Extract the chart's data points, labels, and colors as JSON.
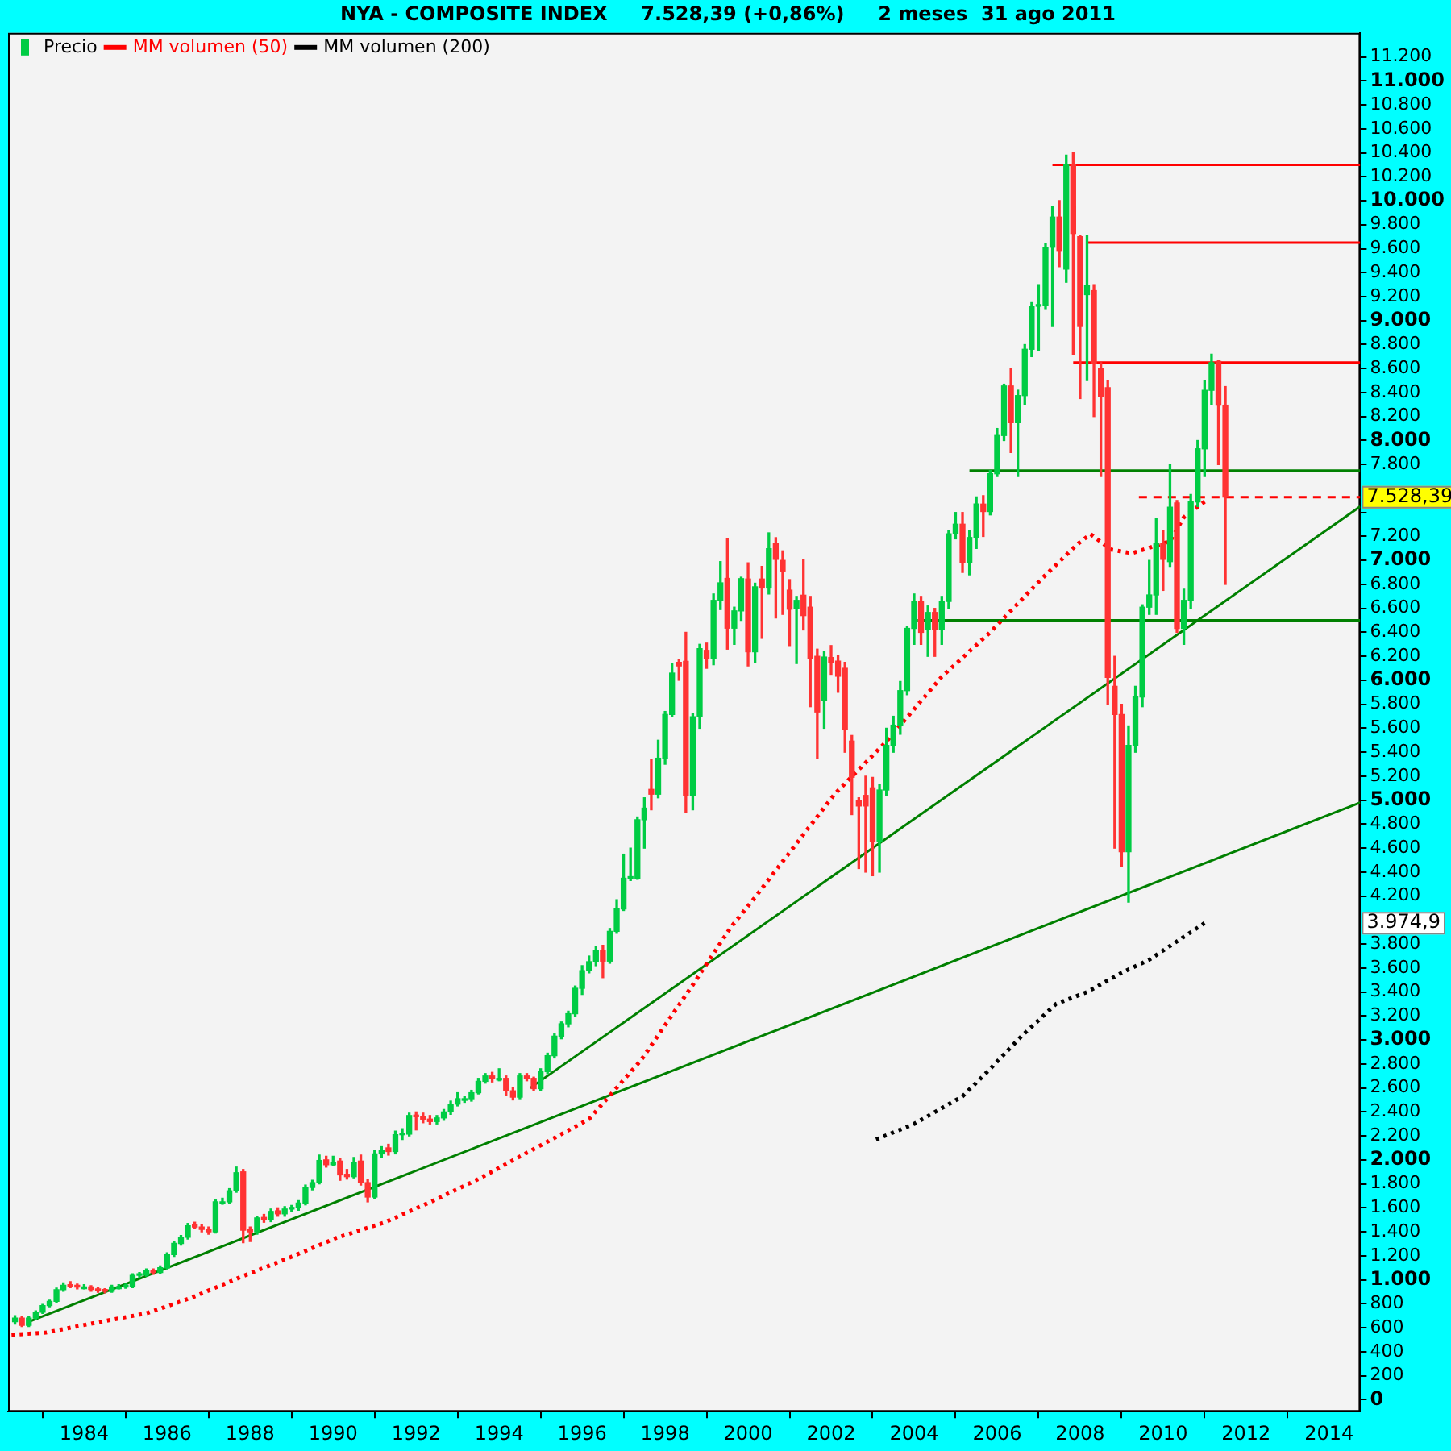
{
  "chart_data": {
    "type": "candlestick",
    "title": "NYA - COMPOSITE INDEX     7.528,39 (+0,86%)     2 meses  31 ago 2011",
    "legend": "top left",
    "xlim": [
      "1982-03",
      "2014-10"
    ],
    "xticks": [
      "1984",
      "1986",
      "1988",
      "1990",
      "1992",
      "1994",
      "1996",
      "1998",
      "2000",
      "2002",
      "2004",
      "2006",
      "2008",
      "2010",
      "2012",
      "2014"
    ],
    "ylim": [
      -100,
      11400
    ],
    "yticks": [
      0,
      200,
      400,
      600,
      800,
      {
        "value": 1000,
        "label": "1.000"
      },
      {
        "value": 1200,
        "label": "1.200"
      },
      {
        "value": 1400,
        "label": "1.400"
      },
      {
        "value": 1600,
        "label": "1.600"
      },
      {
        "value": 1800,
        "label": "1.800"
      },
      {
        "value": 2000,
        "label": "2.000"
      },
      {
        "value": 2200,
        "label": "2.200"
      },
      {
        "value": 2400,
        "label": "2.400"
      },
      {
        "value": 2600,
        "label": "2.600"
      },
      {
        "value": 2800,
        "label": "2.800"
      },
      {
        "value": 3000,
        "label": "3.000"
      },
      {
        "value": 3200,
        "label": "3.200"
      },
      {
        "value": 3400,
        "label": "3.400"
      },
      {
        "value": 3600,
        "label": "3.600"
      },
      {
        "value": 3800,
        "label": "3.800"
      },
      {
        "value": 4200,
        "label": "4.200"
      },
      {
        "value": 4400,
        "label": "4.400"
      },
      {
        "value": 4600,
        "label": "4.600"
      },
      {
        "value": 4800,
        "label": "4.800"
      },
      {
        "value": 5000,
        "label": "5.000"
      },
      {
        "value": 5200,
        "label": "5.200"
      },
      {
        "value": 5400,
        "label": "5.400"
      },
      {
        "value": 5600,
        "label": "5.600"
      },
      {
        "value": 5800,
        "label": "5.800"
      },
      {
        "value": 6000,
        "label": "6.000"
      },
      {
        "value": 6200,
        "label": "6.200"
      },
      {
        "value": 6400,
        "label": "6.400"
      },
      {
        "value": 6600,
        "label": "6.600"
      },
      {
        "value": 6800,
        "label": "6.800"
      },
      {
        "value": 7000,
        "label": "7.000"
      },
      {
        "value": 7200,
        "label": "7.200"
      },
      {
        "value": 7400,
        "label": null
      },
      {
        "value": 7800,
        "label": "7.800"
      },
      {
        "value": 8000,
        "label": "8.000"
      },
      {
        "value": 8200,
        "label": "8.200"
      },
      {
        "value": 8400,
        "label": "8.400"
      },
      {
        "value": 8600,
        "label": "8.600"
      },
      {
        "value": 8800,
        "label": "8.800"
      },
      {
        "value": 9000,
        "label": "9.000"
      },
      {
        "value": 9200,
        "label": "9.200"
      },
      {
        "value": 9400,
        "label": "9.400"
      },
      {
        "value": 9600,
        "label": "9.600"
      },
      {
        "value": 9800,
        "label": "9.800"
      },
      {
        "value": 10000,
        "label": "10.000"
      },
      {
        "value": 10200,
        "label": "10.200"
      },
      {
        "value": 10400,
        "label": "10.400"
      },
      {
        "value": 10600,
        "label": "10.600"
      },
      {
        "value": 10800,
        "label": "10.800"
      },
      {
        "value": 11000,
        "label": "11.000"
      },
      {
        "value": 11200,
        "label": "11.200"
      }
    ],
    "annotations": [
      {
        "text": "7.528,39",
        "x": "2014-10",
        "y": 7528.39
      },
      "3.974,9"
    ],
    "series": [
      {
        "name": "Precio",
        "color": "#000000",
        "x": [
          "1982-05",
          "1982-07",
          "1982-09",
          "1982-11",
          "1983-01",
          "1983-03",
          "1983-05",
          "1983-07",
          "1983-09",
          "1983-11",
          "1984-01",
          "1984-03",
          "1984-05",
          "1984-07",
          "1984-09",
          "1984-11",
          "1985-01",
          "1985-03",
          "1985-05",
          "1985-07",
          "1985-09",
          "1985-11",
          "1986-01",
          "1986-03",
          "1986-05",
          "1986-07",
          "1986-09",
          "1986-11",
          "1987-01",
          "1987-03",
          "1987-05",
          "1987-07",
          "1987-09",
          "1987-11",
          "1988-01",
          "1988-03",
          "1988-05",
          "1988-07",
          "1988-09",
          "1988-11",
          "1989-01",
          "1989-03",
          "1989-05",
          "1989-07",
          "1989-09",
          "1989-11",
          "1990-01",
          "1990-03",
          "1990-05",
          "1990-07",
          "1990-09",
          "1990-11",
          "1991-01",
          "1991-03",
          "1991-05",
          "1991-07",
          "1991-09",
          "1991-11",
          "1992-01",
          "1992-03",
          "1992-05",
          "1992-07",
          "1992-09",
          "1992-11",
          "1993-01",
          "1993-03",
          "1993-05",
          "1993-07",
          "1993-09",
          "1993-11",
          "1994-01",
          "1994-03",
          "1994-05",
          "1994-07",
          "1994-09",
          "1994-11",
          "1995-01",
          "1995-03",
          "1995-05",
          "1995-07",
          "1995-09",
          "1995-11",
          "1996-01",
          "1996-03",
          "1996-05",
          "1996-07",
          "1996-09",
          "1996-11",
          "1997-01",
          "1997-03",
          "1997-05",
          "1997-07",
          "1997-09",
          "1997-11",
          "1998-01",
          "1998-03",
          "1998-05",
          "1998-07",
          "1998-09",
          "1998-11",
          "1999-01",
          "1999-03",
          "1999-05",
          "1999-07",
          "1999-09",
          "1999-11",
          "2000-01",
          "2000-03",
          "2000-05",
          "2000-07",
          "2000-09",
          "2000-11",
          "2001-01",
          "2001-03",
          "2001-05",
          "2001-07",
          "2001-09",
          "2001-11",
          "2002-01",
          "2002-03",
          "2002-05",
          "2002-07",
          "2002-09",
          "2002-11",
          "2003-01",
          "2003-03",
          "2003-05",
          "2003-07",
          "2003-09",
          "2003-11",
          "2004-01",
          "2004-03",
          "2004-05",
          "2004-07",
          "2004-09",
          "2004-11",
          "2005-01",
          "2005-03",
          "2005-05",
          "2005-07",
          "2005-09",
          "2005-11",
          "2006-01",
          "2006-03",
          "2006-05",
          "2006-07",
          "2006-09",
          "2006-11",
          "2007-01",
          "2007-03",
          "2007-05",
          "2007-07",
          "2007-09",
          "2007-11",
          "2008-01",
          "2008-03",
          "2008-05",
          "2008-07",
          "2008-09",
          "2008-11",
          "2009-01",
          "2009-03",
          "2009-05",
          "2009-07",
          "2009-09",
          "2009-11",
          "2010-01",
          "2010-03",
          "2010-05",
          "2010-07",
          "2010-09",
          "2010-11",
          "2011-01",
          "2011-03",
          "2011-05",
          "2011-07"
        ],
        "ohlc": [
          [
            650,
            700,
            630,
            680
          ],
          [
            680,
            690,
            610,
            620
          ],
          [
            620,
            690,
            610,
            680
          ],
          [
            680,
            740,
            670,
            730
          ],
          [
            730,
            795,
            720,
            785
          ],
          [
            785,
            830,
            775,
            820
          ],
          [
            820,
            930,
            810,
            918
          ],
          [
            918,
            975,
            905,
            955
          ],
          [
            960,
            985,
            935,
            945
          ],
          [
            945,
            965,
            925,
            940
          ],
          [
            940,
            960,
            925,
            940
          ],
          [
            940,
            950,
            905,
            920
          ],
          [
            920,
            935,
            895,
            910
          ],
          [
            910,
            925,
            890,
            905
          ],
          [
            905,
            955,
            895,
            940
          ],
          [
            940,
            960,
            925,
            940
          ],
          [
            940,
            965,
            930,
            945
          ],
          [
            945,
            1050,
            935,
            1037
          ],
          [
            1037,
            1060,
            1020,
            1040
          ],
          [
            1040,
            1090,
            1030,
            1075
          ],
          [
            1075,
            1090,
            1045,
            1060
          ],
          [
            1060,
            1115,
            1050,
            1100
          ],
          [
            1100,
            1225,
            1090,
            1210
          ],
          [
            1210,
            1320,
            1195,
            1303
          ],
          [
            1303,
            1370,
            1290,
            1355
          ],
          [
            1355,
            1470,
            1340,
            1450
          ],
          [
            1460,
            1480,
            1425,
            1440
          ],
          [
            1440,
            1460,
            1400,
            1420
          ],
          [
            1420,
            1440,
            1380,
            1400
          ],
          [
            1400,
            1665,
            1390,
            1650
          ],
          [
            1650,
            1680,
            1630,
            1650
          ],
          [
            1650,
            1760,
            1640,
            1742
          ],
          [
            1742,
            1940,
            1730,
            1893
          ],
          [
            1900,
            1920,
            1310,
            1414
          ],
          [
            1420,
            1440,
            1320,
            1400
          ],
          [
            1400,
            1530,
            1380,
            1516
          ],
          [
            1520,
            1545,
            1480,
            1500
          ],
          [
            1500,
            1590,
            1485,
            1570
          ],
          [
            1575,
            1600,
            1530,
            1550
          ],
          [
            1550,
            1610,
            1530,
            1590
          ],
          [
            1590,
            1620,
            1570,
            1600
          ],
          [
            1600,
            1660,
            1580,
            1640
          ],
          [
            1640,
            1790,
            1625,
            1770
          ],
          [
            1770,
            1830,
            1750,
            1810
          ],
          [
            1810,
            2040,
            1800,
            1995
          ],
          [
            2000,
            2030,
            1940,
            1960
          ],
          [
            1960,
            2030,
            1950,
            1980
          ],
          [
            1990,
            2010,
            1830,
            1875
          ],
          [
            1880,
            1920,
            1840,
            1860
          ],
          [
            1860,
            2020,
            1850,
            1980
          ],
          [
            1990,
            2040,
            1790,
            1810
          ],
          [
            1810,
            1840,
            1650,
            1690
          ],
          [
            1690,
            2080,
            1680,
            2050
          ],
          [
            2050,
            2110,
            2020,
            2080
          ],
          [
            2100,
            2130,
            2040,
            2070
          ],
          [
            2070,
            2240,
            2050,
            2210
          ],
          [
            2210,
            2260,
            2170,
            2215
          ],
          [
            2215,
            2390,
            2200,
            2370
          ],
          [
            2370,
            2400,
            2250,
            2360
          ],
          [
            2360,
            2390,
            2310,
            2340
          ],
          [
            2340,
            2370,
            2300,
            2320
          ],
          [
            2320,
            2370,
            2300,
            2350
          ],
          [
            2350,
            2420,
            2330,
            2400
          ],
          [
            2400,
            2490,
            2380,
            2465
          ],
          [
            2465,
            2560,
            2450,
            2510
          ],
          [
            2510,
            2530,
            2480,
            2510
          ],
          [
            2510,
            2580,
            2490,
            2560
          ],
          [
            2560,
            2680,
            2550,
            2655
          ],
          [
            2655,
            2720,
            2640,
            2700
          ],
          [
            2700,
            2730,
            2650,
            2680
          ],
          [
            2680,
            2760,
            2660,
            2680
          ],
          [
            2680,
            2700,
            2540,
            2576
          ],
          [
            2576,
            2600,
            2500,
            2523
          ],
          [
            2523,
            2720,
            2510,
            2700
          ],
          [
            2700,
            2720,
            2660,
            2680
          ],
          [
            2680,
            2690,
            2580,
            2594
          ],
          [
            2594,
            2760,
            2580,
            2736
          ],
          [
            2736,
            2890,
            2720,
            2869
          ],
          [
            2869,
            3050,
            2850,
            3032
          ],
          [
            3032,
            3150,
            3010,
            3135
          ],
          [
            3135,
            3240,
            3110,
            3219
          ],
          [
            3219,
            3450,
            3200,
            3431
          ],
          [
            3431,
            3620,
            3380,
            3578
          ],
          [
            3578,
            3700,
            3560,
            3653
          ],
          [
            3653,
            3780,
            3620,
            3747
          ],
          [
            3747,
            3790,
            3520,
            3658
          ],
          [
            3658,
            3930,
            3640,
            3906
          ],
          [
            3906,
            4170,
            3890,
            4093
          ],
          [
            4093,
            4550,
            4080,
            4349
          ],
          [
            4349,
            4600,
            4330,
            4350
          ],
          [
            4350,
            4860,
            4340,
            4837
          ],
          [
            4837,
            5020,
            4600,
            4934
          ],
          [
            5090,
            5340,
            4920,
            5050
          ],
          [
            5050,
            5500,
            5020,
            5350
          ],
          [
            5350,
            5740,
            5300,
            5715
          ],
          [
            5715,
            6140,
            5700,
            6060
          ],
          [
            6150,
            6170,
            6000,
            6120
          ],
          [
            6158,
            6400,
            4900,
            5040
          ],
          [
            5040,
            5720,
            4920,
            5696
          ],
          [
            5696,
            6300,
            5600,
            6264
          ],
          [
            6250,
            6310,
            6100,
            6180
          ],
          [
            6180,
            6720,
            6130,
            6667
          ],
          [
            6667,
            6990,
            6590,
            6813
          ],
          [
            6850,
            7180,
            6260,
            6435
          ],
          [
            6435,
            6610,
            6300,
            6579
          ],
          [
            6579,
            6860,
            6500,
            6848
          ],
          [
            6845,
            6980,
            6120,
            6238
          ],
          [
            6238,
            6810,
            6150,
            6780
          ],
          [
            6845,
            6950,
            6350,
            6770
          ],
          [
            6770,
            7230,
            6720,
            7098
          ],
          [
            7142,
            7190,
            6520,
            7009
          ],
          [
            7000,
            7080,
            6550,
            6912
          ],
          [
            6752,
            6840,
            6290,
            6593
          ],
          [
            6600,
            6700,
            6140,
            6667
          ],
          [
            6710,
            7010,
            6420,
            6540
          ],
          [
            6610,
            6700,
            5780,
            6180
          ],
          [
            6200,
            6260,
            5350,
            5736
          ],
          [
            5834,
            6240,
            5600,
            6194
          ],
          [
            6190,
            6290,
            6050,
            6149
          ],
          [
            6160,
            6210,
            5900,
            6034
          ],
          [
            6100,
            6150,
            5400,
            5590
          ],
          [
            5493,
            5540,
            4880,
            5191
          ],
          [
            4997,
            5020,
            4430,
            4952
          ],
          [
            5040,
            5200,
            4400,
            4952
          ],
          [
            5103,
            5190,
            4370,
            4659
          ],
          [
            4659,
            5130,
            4400,
            5085
          ],
          [
            5085,
            5600,
            5040,
            5457
          ],
          [
            5457,
            5700,
            5400,
            5626
          ],
          [
            5626,
            5990,
            5550,
            5914
          ],
          [
            5914,
            6450,
            5880,
            6433
          ],
          [
            6433,
            6720,
            6300,
            6658
          ],
          [
            6658,
            6700,
            6300,
            6400
          ],
          [
            6424,
            6620,
            6200,
            6566
          ],
          [
            6566,
            6600,
            6200,
            6424
          ],
          [
            6424,
            6700,
            6300,
            6658
          ],
          [
            6658,
            7250,
            6600,
            7222
          ],
          [
            7222,
            7400,
            7180,
            7302
          ],
          [
            7302,
            7400,
            6900,
            6979
          ],
          [
            6979,
            7250,
            6880,
            7191
          ],
          [
            7191,
            7530,
            7100,
            7471
          ],
          [
            7470,
            7540,
            7200,
            7408
          ],
          [
            7408,
            7750,
            7380,
            7723
          ],
          [
            7723,
            8100,
            7700,
            8042
          ],
          [
            8042,
            8470,
            8000,
            8455
          ],
          [
            8455,
            8600,
            7900,
            8149
          ],
          [
            8149,
            8420,
            7700,
            8375
          ],
          [
            8375,
            8800,
            8300,
            8761
          ],
          [
            8761,
            9150,
            8700,
            9120
          ],
          [
            9120,
            9300,
            8750,
            9130
          ],
          [
            9130,
            9640,
            9100,
            9612
          ],
          [
            9612,
            9950,
            8950,
            9864
          ],
          [
            9864,
            10000,
            9450,
            9585
          ],
          [
            9430,
            10380,
            9320,
            10303
          ],
          [
            10303,
            10400,
            8720,
            9727
          ],
          [
            9700,
            9710,
            8350,
            8951
          ],
          [
            9217,
            9710,
            8500,
            9293
          ],
          [
            9250,
            9300,
            8200,
            8641
          ],
          [
            8600,
            8650,
            7700,
            8366
          ],
          [
            8441,
            8500,
            5800,
            6025
          ],
          [
            5950,
            6200,
            4600,
            5715
          ],
          [
            5715,
            5800,
            4450,
            4571
          ],
          [
            4571,
            5620,
            4150,
            5457
          ],
          [
            5457,
            5950,
            5400,
            5861
          ],
          [
            5861,
            6630,
            5780,
            6610
          ],
          [
            6610,
            7000,
            6550,
            6712
          ],
          [
            6712,
            7350,
            6550,
            7145
          ],
          [
            7145,
            7250,
            6750,
            7009
          ],
          [
            6990,
            7800,
            6950,
            7444
          ],
          [
            7480,
            7500,
            6400,
            6433
          ],
          [
            6433,
            6760,
            6300,
            6667
          ],
          [
            6667,
            7550,
            6600,
            7488
          ],
          [
            7488,
            8000,
            7450,
            7931
          ],
          [
            7931,
            8500,
            7700,
            8419
          ],
          [
            8419,
            8720,
            8300,
            8649
          ],
          [
            8660,
            8670,
            7800,
            8295
          ],
          [
            8295,
            8450,
            6800,
            7528.39
          ]
        ],
        "colors": [
          "#00cc44",
          "#ff3333",
          "#00cc44",
          "#00cc44",
          "#00cc44",
          "#00cc44",
          "#00cc44",
          "#00cc44",
          "#ff3333",
          "#ff3333",
          "#00cc44",
          "#ff3333",
          "#ff3333",
          "#ff3333",
          "#00cc44",
          "#00cc44",
          "#00cc44",
          "#00cc44",
          "#00cc44",
          "#00cc44",
          "#ff3333",
          "#00cc44",
          "#00cc44",
          "#00cc44",
          "#00cc44",
          "#00cc44",
          "#ff3333",
          "#ff3333",
          "#ff3333",
          "#00cc44",
          "#00cc44",
          "#00cc44",
          "#00cc44",
          "#ff3333",
          "#ff3333",
          "#00cc44",
          "#ff3333",
          "#00cc44",
          "#ff3333",
          "#00cc44",
          "#00cc44",
          "#00cc44",
          "#00cc44",
          "#00cc44",
          "#00cc44",
          "#ff3333",
          "#00cc44",
          "#ff3333",
          "#ff3333",
          "#00cc44",
          "#ff3333",
          "#ff3333",
          "#00cc44",
          "#00cc44",
          "#ff3333",
          "#00cc44",
          "#00cc44",
          "#00cc44",
          "#ff3333",
          "#ff3333",
          "#ff3333",
          "#00cc44",
          "#00cc44",
          "#00cc44",
          "#00cc44",
          "#00cc44",
          "#00cc44",
          "#00cc44",
          "#00cc44",
          "#ff3333",
          "#00cc44",
          "#ff3333",
          "#ff3333",
          "#00cc44",
          "#ff3333",
          "#ff3333",
          "#00cc44",
          "#00cc44",
          "#00cc44",
          "#00cc44",
          "#00cc44",
          "#00cc44",
          "#00cc44",
          "#00cc44",
          "#00cc44",
          "#ff3333",
          "#00cc44",
          "#00cc44",
          "#00cc44",
          "#00cc44",
          "#00cc44",
          "#00cc44",
          "#ff3333",
          "#00cc44",
          "#00cc44",
          "#00cc44",
          "#ff3333",
          "#ff3333",
          "#00cc44",
          "#00cc44",
          "#ff3333",
          "#00cc44",
          "#00cc44",
          "#ff3333",
          "#00cc44",
          "#00cc44",
          "#ff3333",
          "#00cc44",
          "#ff3333",
          "#00cc44",
          "#ff3333",
          "#ff3333",
          "#ff3333",
          "#00cc44",
          "#ff3333",
          "#ff3333",
          "#ff3333",
          "#00cc44",
          "#ff3333",
          "#ff3333",
          "#ff3333",
          "#ff3333",
          "#ff3333",
          "#ff3333",
          "#ff3333",
          "#00cc44",
          "#00cc44",
          "#00cc44",
          "#00cc44",
          "#00cc44",
          "#00cc44",
          "#ff3333",
          "#00cc44",
          "#ff3333",
          "#00cc44",
          "#00cc44",
          "#00cc44",
          "#ff3333",
          "#00cc44",
          "#00cc44",
          "#ff3333",
          "#00cc44",
          "#00cc44",
          "#00cc44",
          "#ff3333",
          "#00cc44",
          "#00cc44",
          "#00cc44",
          "#00cc44",
          "#00cc44",
          "#00cc44",
          "#ff3333",
          "#00cc44",
          "#ff3333",
          "#ff3333",
          "#00cc44",
          "#ff3333",
          "#ff3333",
          "#ff3333",
          "#ff3333",
          "#ff3333",
          "#00cc44",
          "#00cc44",
          "#00cc44",
          "#00cc44",
          "#00cc44",
          "#ff3333",
          "#00cc44",
          "#ff3333",
          "#00cc44",
          "#00cc44",
          "#00cc44",
          "#00cc44",
          "#00cc44",
          "#ff3333",
          "#ff3333"
        ]
      },
      {
        "name": "MM volumen (50)",
        "type": "line",
        "color": "#ff0000",
        "line_style": "dotted",
        "x": [
          "1982-04",
          "1983-02",
          "1984-04",
          "1985-07",
          "1986-08",
          "1987-10",
          "1988-12",
          "1990-02",
          "1991-04",
          "1992-06",
          "1993-07",
          "1996-03",
          "1997-06",
          "1998-09",
          "1999-08",
          "2000-03",
          "2002-02",
          "2003-05",
          "2004-09",
          "2005-11",
          "2007-02",
          "2007-12",
          "2008-04",
          "2008-10",
          "2009-04",
          "2010-03",
          "2010-07",
          "2011-01"
        ],
        "values": [
          540,
          560,
          640,
          720,
          850,
          1020,
          1180,
          1350,
          1480,
          1660,
          1840,
          2340,
          2830,
          3460,
          3940,
          4190,
          5050,
          5490,
          6030,
          6400,
          6850,
          7130,
          7220,
          7090,
          7060,
          7160,
          7360,
          7490
        ]
      },
      {
        "name": "MM volumen (200)",
        "type": "line",
        "color": "#000000",
        "line_style": "dotted",
        "x": [
          "2003-02",
          "2004-01",
          "2005-03",
          "2005-10",
          "2006-08",
          "2007-06",
          "2008-03",
          "2009-01",
          "2009-09",
          "2011-01"
        ],
        "values": [
          2170,
          2300,
          2530,
          2730,
          3030,
          3300,
          3400,
          3560,
          3670,
          3974.9
        ]
      },
      {
        "type": "line",
        "color": "#008000",
        "x": [
          "1982-09",
          "2014-10"
        ],
        "values": [
          650,
          4980
        ]
      },
      {
        "type": "line",
        "color": "#008000",
        "x": [
          "1994-10",
          "2014-10"
        ],
        "values": [
          2600,
          7450
        ]
      },
      {
        "type": "line",
        "color": "#ff0000",
        "x": [
          "2007-05",
          "2014-10"
        ],
        "values": [
          10300,
          10300
        ]
      },
      {
        "type": "line",
        "color": "#ff0000",
        "x": [
          "2008-03",
          "2014-10"
        ],
        "values": [
          9650,
          9650
        ]
      },
      {
        "type": "line",
        "color": "#ff0000",
        "x": [
          "2007-11",
          "2014-10"
        ],
        "values": [
          8650,
          8650
        ]
      },
      {
        "type": "line",
        "color": "#008000",
        "x": [
          "2005-05",
          "2014-10"
        ],
        "values": [
          7750,
          7750
        ]
      },
      {
        "type": "line",
        "color": "#008000",
        "x": [
          "2004-02",
          "2014-10"
        ],
        "values": [
          6500,
          6500
        ]
      },
      {
        "type": "line",
        "color": "#ff0000",
        "line_style": "dashed",
        "x": [
          "2009-06",
          "2014-10"
        ],
        "values": [
          7528.39,
          7528.39
        ]
      }
    ]
  }
}
